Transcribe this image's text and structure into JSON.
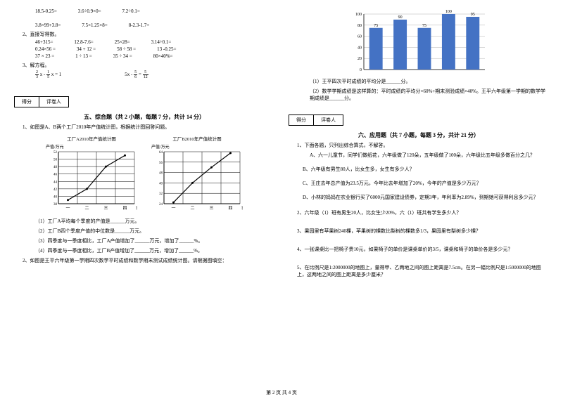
{
  "left": {
    "eq_row1": {
      "a": "18.5-0.25=",
      "b": "3.6÷0.9×0=",
      "c": "7.2÷0.1="
    },
    "eq_row2": {
      "a": "3.8×99+3.8=",
      "b": "7.5×1.25×8=",
      "c": "8-2.3-1.7="
    },
    "item2": "2、直接写得数。",
    "row2a": {
      "a": "46+315=",
      "b": "12.8-7.6=",
      "c": "25×28=",
      "d": "3.14÷0.1="
    },
    "row2b": {
      "a": "0.24×56 =",
      "b": "34 + 12 =",
      "c": "58 ÷ 58 =",
      "d": "13 -0.25="
    },
    "row2c": {
      "a": "37 × 23 =",
      "b": "1 ÷ 13 =",
      "c": "35 ÷ 34 =",
      "d": "80×40%="
    },
    "item3": "3、解方程。",
    "eq3a_parts": {
      "f1n": "2",
      "f1d": "3",
      "mid": "x -",
      "f2n": "1",
      "f2d": "5",
      "tail": "x = 1"
    },
    "eq3b_parts": {
      "lead": "5x -",
      "f1n": "5",
      "f1d": "6",
      "mid": " = ",
      "f2n": "5",
      "f2d": "12"
    },
    "score": {
      "a": "得分",
      "b": "评卷人"
    },
    "section5": "五、综合题（共 2 小题，每题 7 分，共计 14 分）",
    "q1": "1、如图是A、B两个工厂2010年产值统计图，根据统计图回答问题。",
    "chartA": {
      "title": "工厂A2010年产值统计图",
      "unit": "产值/万元",
      "bg": "#ffffff",
      "grid": "#000000",
      "line": "#000000",
      "yticks": [
        38,
        40,
        42,
        44,
        46,
        48,
        50,
        52
      ],
      "xlabels": [
        "一",
        "二",
        "三",
        "四"
      ],
      "xlabel_suffix": "季度",
      "values": [
        39,
        42,
        48,
        51
      ]
    },
    "chartB": {
      "title": "工厂B2010年产值统计图",
      "unit": "产值/万元",
      "bg": "#ffffff",
      "grid": "#000000",
      "line": "#000000",
      "yticks": [
        24,
        32,
        40,
        48,
        56,
        64
      ],
      "xlabels": [
        "一",
        "二",
        "三",
        "四"
      ],
      "xlabel_suffix": "季度",
      "values": [
        25,
        40,
        52,
        63
      ]
    },
    "sub1": "（1）工厂A平均每个季度的产值是______万元。",
    "sub2": "（2）工厂B四个季度产值的中位数是______万元。",
    "sub3": "（3）四季度与一季度相比，工厂A产值增加了______万元，增加了______%。",
    "sub4": "（4）四季度与一季度相比，工厂B产值增加了______万元，增加了______%。",
    "q2": "2、如图是王平六年级第一学期四次数学平时成绩和数学期末测试成绩统计图。请根据图填空："
  },
  "right": {
    "barchart": {
      "bg": "#ffffff",
      "grid": "#b0b0b0",
      "bar": "#4472c4",
      "text": "#000000",
      "yticks": [
        0,
        20,
        40,
        60,
        80,
        100
      ],
      "values": [
        75,
        90,
        75,
        100,
        95
      ],
      "bar_width": 0.55
    },
    "r1": "（1）王平四次平时成绩的平均分是______分。",
    "r2": "（2）数学学期成绩是这样算的：平时成绩的平均分×60%+期末测验成绩×40%。王平六年级第一学期的数学学期成绩是______分。",
    "score": {
      "a": "得分",
      "b": "评卷人"
    },
    "section6": "六、应用题（共 7 小题，每题 3 分，共计 21 分）",
    "app1": "1、下面各题，只列出综合算式，不解答。",
    "app1a": "A、六一儿童节，同学们做纸花，六年级做了120朵，五年级做了100朵，六年级比五年级多做百分之几？",
    "app1b": "B、六年级有男生80人，比女生多，女生有多少人？",
    "app1c": "C、王庄去年总产值为23.5万元，今年比去年增加了20%，今年的产值是多少万元？",
    "app1d": "D、小林的妈妈在农业银行买了6000元国家建设债券，定期3年，年利率为2.89%，到期她可获得利息多少元？",
    "app2": "2、六年级（1）班有男生20人，比女生少20%，六（1）班共有学生多少人？",
    "app3": "3、果园里有苹果树240棵，苹果树的棵数比梨树的棵数多1/3，果园里有梨树多少棵？",
    "app4": "4、一张课桌比一把椅子贵10元，如果椅子的单价是课桌单价的3/5，课桌和椅子的单价各是多少元？",
    "app5": "5、在比例尺是1:2000000的地图上，量得甲、乙两地之间的图上距离是7.5cm。在另一幅比例尺是1:5000000的地图上，这两地之间的图上距离是多少厘米？"
  },
  "footer": "第 2 页 共 4 页"
}
